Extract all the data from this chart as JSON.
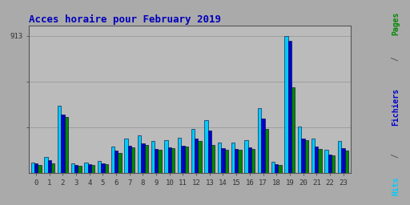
{
  "title": "Acces horaire pour February 2019",
  "hours": [
    0,
    1,
    2,
    3,
    4,
    5,
    6,
    7,
    8,
    9,
    10,
    11,
    12,
    13,
    14,
    15,
    16,
    17,
    18,
    19,
    20,
    21,
    22,
    23
  ],
  "hits": [
    72,
    108,
    448,
    65,
    72,
    80,
    178,
    228,
    252,
    212,
    222,
    238,
    292,
    352,
    206,
    202,
    218,
    432,
    78,
    913,
    312,
    228,
    156,
    212
  ],
  "fichiers": [
    63,
    88,
    390,
    56,
    62,
    67,
    148,
    185,
    198,
    162,
    172,
    185,
    228,
    282,
    168,
    162,
    172,
    362,
    62,
    878,
    232,
    178,
    122,
    168
  ],
  "pages": [
    56,
    68,
    374,
    51,
    56,
    62,
    132,
    172,
    188,
    157,
    167,
    177,
    212,
    188,
    157,
    157,
    162,
    292,
    56,
    572,
    222,
    162,
    117,
    152
  ],
  "color_hits": "#00ccff",
  "color_fichiers": "#0000cc",
  "color_pages": "#008800",
  "bar_edge_color": "#000033",
  "bg_color": "#aaaaaa",
  "plot_bg": "#bbbbbb",
  "title_color": "#0000bb",
  "ytick_val": 913,
  "ylim": [
    0,
    980
  ],
  "gridline_vals": [
    304,
    609,
    913
  ],
  "color_ylabel_pages": "#008800",
  "color_ylabel_fichiers": "#0000cc",
  "color_ylabel_hits": "#00ccff"
}
